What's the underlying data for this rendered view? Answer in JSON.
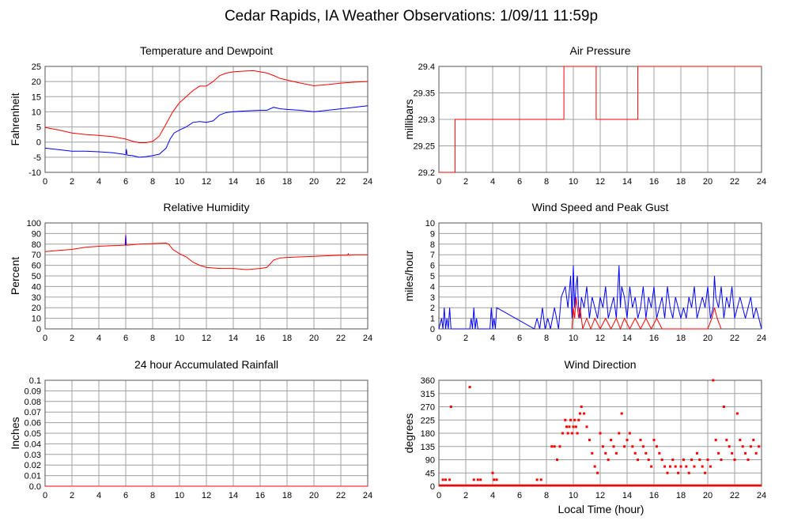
{
  "page_title": "Cedar Rapids, IA Weather Observations: 1/09/11 11:59p",
  "x_axis_label": "Local Time (hour)",
  "colors": {
    "red": "#ff0000",
    "blue": "#0000ff",
    "grid": "#a0a0a0"
  },
  "chart_data": [
    {
      "id": "temp",
      "type": "line",
      "title": "Temperature and Dewpoint",
      "ylabel": "Fahrenheit",
      "xlim": [
        0,
        24
      ],
      "ylim": [
        -10,
        25
      ],
      "xticks": [
        0,
        2,
        4,
        6,
        8,
        10,
        12,
        14,
        16,
        18,
        20,
        22,
        24
      ],
      "yticks": [
        -10,
        -5,
        0,
        5,
        10,
        15,
        20,
        25
      ],
      "series": [
        {
          "color": "#ff0000",
          "x": [
            0,
            1,
            2,
            3,
            4,
            5,
            6,
            6.5,
            7,
            7.5,
            8,
            8.5,
            9,
            9.5,
            10,
            10.5,
            11,
            11.5,
            12,
            12.5,
            13,
            13.5,
            14,
            15,
            15.5,
            16,
            16.5,
            17,
            17.5,
            18,
            19,
            20,
            21,
            22,
            23,
            24
          ],
          "y": [
            4.8,
            4,
            3,
            2.5,
            2.2,
            1.8,
            1,
            0.3,
            -0.2,
            -0.2,
            0.2,
            2,
            6,
            10,
            13,
            15,
            17,
            18.5,
            18.5,
            20,
            22,
            22.8,
            23.2,
            23.5,
            23.6,
            23.2,
            22.8,
            22,
            21,
            20.5,
            19.5,
            18.6,
            19,
            19.5,
            19.8,
            20
          ]
        },
        {
          "color": "#0000ff",
          "x": [
            0,
            1,
            2,
            3,
            4,
            5,
            5.8,
            6,
            6.05,
            6.1,
            6.5,
            7,
            7.5,
            8,
            8.5,
            9,
            9.3,
            9.6,
            10,
            10.5,
            11,
            11.5,
            12,
            12.5,
            13,
            13.5,
            14,
            14.5,
            15,
            16,
            16.5,
            17,
            17.5,
            18,
            19,
            20,
            21,
            22,
            23,
            24
          ],
          "y": [
            -2,
            -2.5,
            -3,
            -3,
            -3.2,
            -3.5,
            -4,
            -4.2,
            -2.3,
            -4.3,
            -4.5,
            -5,
            -4.8,
            -4.5,
            -4,
            -2,
            1,
            3,
            4,
            5,
            6.5,
            6.8,
            6.5,
            7,
            9,
            9.8,
            10,
            10.2,
            10.3,
            10.5,
            10.5,
            11.5,
            11,
            10.8,
            10.5,
            10,
            10.5,
            11,
            11.5,
            12
          ]
        }
      ]
    },
    {
      "id": "press",
      "type": "line",
      "title": "Air Pressure",
      "ylabel": "millibars",
      "xlim": [
        0,
        24
      ],
      "ylim": [
        29.2,
        29.4
      ],
      "xticks": [
        0,
        2,
        4,
        6,
        8,
        10,
        12,
        14,
        16,
        18,
        20,
        22,
        24
      ],
      "yticks": [
        29.2,
        29.25,
        29.3,
        29.35,
        29.4
      ],
      "ytick_labels": [
        "29.2",
        "29.25",
        "29.3",
        "29.35",
        "29.4"
      ],
      "step": true,
      "series": [
        {
          "color": "#ff0000",
          "x": [
            0,
            1.2,
            1.2,
            9.3,
            9.3,
            11.7,
            11.7,
            14.8,
            14.8,
            24
          ],
          "y": [
            29.2,
            29.2,
            29.3,
            29.3,
            29.4,
            29.4,
            29.3,
            29.3,
            29.4,
            29.4
          ]
        }
      ]
    },
    {
      "id": "rh",
      "type": "line",
      "title": "Relative Humidity",
      "ylabel": "Percent",
      "xlim": [
        0,
        24
      ],
      "ylim": [
        0,
        100
      ],
      "xticks": [
        0,
        2,
        4,
        6,
        8,
        10,
        12,
        14,
        16,
        18,
        20,
        22,
        24
      ],
      "yticks": [
        0,
        10,
        20,
        30,
        40,
        50,
        60,
        70,
        80,
        90,
        100
      ],
      "series": [
        {
          "color": "#ff0000",
          "x": [
            0,
            1,
            2,
            3,
            4,
            5,
            5.95,
            6,
            6.05,
            6.1,
            7,
            8,
            9,
            9.2,
            9.5,
            10,
            10.5,
            11,
            11.5,
            12,
            13,
            14,
            15,
            16,
            16.5,
            17,
            17.5,
            18,
            19,
            20,
            21,
            22,
            22.5,
            22.55,
            22.6,
            23,
            24
          ],
          "y": [
            73,
            74,
            75,
            77,
            78,
            78.5,
            79,
            89,
            79,
            79,
            80,
            80.5,
            81,
            80,
            75,
            71,
            68,
            63,
            60,
            58,
            57,
            57,
            56,
            57,
            58,
            65,
            67,
            67.5,
            68,
            68.5,
            69,
            69.5,
            69.5,
            71,
            69.5,
            70,
            70
          ]
        },
        {
          "color": "#0000ff",
          "x": [
            5.98,
            6,
            6.02
          ],
          "y": [
            79,
            88,
            79
          ]
        }
      ]
    },
    {
      "id": "wind",
      "type": "line",
      "title": "Wind Speed and Peak Gust",
      "ylabel": "miles/hour",
      "xlim": [
        0,
        24
      ],
      "ylim": [
        0,
        10
      ],
      "xticks": [
        0,
        2,
        4,
        6,
        8,
        10,
        12,
        14,
        16,
        18,
        20,
        22,
        24
      ],
      "yticks": [
        0,
        1,
        2,
        3,
        4,
        5,
        6,
        7,
        8,
        9,
        10
      ],
      "series": [
        {
          "color": "#0000ff",
          "x": [
            0,
            0.2,
            0.3,
            0.4,
            0.5,
            0.6,
            0.7,
            0.8,
            0.9,
            1.0,
            2.3,
            2.4,
            2.5,
            2.6,
            2.7,
            2.8,
            2.9,
            3.0,
            3.8,
            3.9,
            4.0,
            4.1,
            4.2,
            4.3,
            7.1,
            7.3,
            7.5,
            7.7,
            7.9,
            8.1,
            8.3,
            8.6,
            8.9,
            9.1,
            9.4,
            9.6,
            9.8,
            9.9,
            10.0,
            10.1,
            10.2,
            10.3,
            10.35,
            10.4,
            10.5,
            10.6,
            10.8,
            11.0,
            11.2,
            11.4,
            11.6,
            11.8,
            12.0,
            12.2,
            12.4,
            12.6,
            12.8,
            13.0,
            13.2,
            13.4,
            13.5,
            13.6,
            13.8,
            14.0,
            14.2,
            14.4,
            14.6,
            14.8,
            15.0,
            15.2,
            15.4,
            15.6,
            15.8,
            16.0,
            16.2,
            16.4,
            16.6,
            16.8,
            17.0,
            17.2,
            17.4,
            17.6,
            17.8,
            18.0,
            18.2,
            18.4,
            18.6,
            18.8,
            19.0,
            19.2,
            19.4,
            19.6,
            19.8,
            20.0,
            20.2,
            20.4,
            20.5,
            20.6,
            20.8,
            21.0,
            21.2,
            21.4,
            21.6,
            21.8,
            22.0,
            22.2,
            22.4,
            22.6,
            22.8,
            23.0,
            23.2,
            23.4,
            23.6,
            23.8,
            24.0
          ],
          "y": [
            0,
            1,
            0,
            2,
            0,
            1,
            0,
            2,
            0,
            0,
            0,
            1,
            0,
            2,
            0,
            1,
            0,
            0,
            0,
            2,
            0,
            1,
            0,
            2,
            0,
            1,
            0,
            2,
            0,
            1,
            0,
            2,
            0,
            3,
            4,
            2,
            5,
            1,
            6,
            2,
            4,
            5,
            3,
            2,
            1,
            3,
            2,
            4,
            1,
            3,
            2,
            1,
            3,
            2,
            4,
            1,
            2,
            3,
            1,
            6,
            2,
            4,
            3,
            1,
            4,
            2,
            3,
            1,
            2,
            4,
            1,
            3,
            2,
            4,
            1,
            2,
            3,
            1,
            4,
            2,
            1,
            3,
            2,
            1,
            2,
            1,
            3,
            2,
            4,
            1,
            2,
            3,
            2,
            4,
            1,
            2,
            5,
            3,
            2,
            4,
            1,
            3,
            2,
            4,
            1,
            2,
            3,
            2,
            1,
            2,
            3,
            1,
            2,
            1,
            0
          ]
        },
        {
          "color": "#ff0000",
          "x": [
            9.9,
            10.0,
            10.1,
            10.2,
            10.3,
            10.4,
            10.5,
            10.6,
            10.7,
            11.0,
            11.3,
            11.6,
            12.0,
            12.4,
            12.8,
            13.2,
            13.5,
            13.8,
            14.2,
            14.6,
            15.0,
            15.4,
            15.8,
            16.2,
            16.6,
            17.0,
            18.5,
            20.0,
            20.3,
            20.5,
            20.7,
            21.0
          ],
          "y": [
            0,
            2,
            1,
            3,
            2,
            1,
            2,
            1,
            0,
            1,
            0,
            1,
            0,
            1,
            0,
            1,
            0,
            1,
            0,
            1,
            0,
            1,
            0,
            1,
            0,
            0,
            0,
            0,
            1,
            2,
            1,
            0
          ]
        }
      ]
    },
    {
      "id": "rain",
      "type": "line",
      "title": "24 hour Accumulated Rainfall",
      "ylabel": "Inches",
      "xlim": [
        0,
        24
      ],
      "ylim": [
        0,
        0.1
      ],
      "xticks": [
        0,
        2,
        4,
        6,
        8,
        10,
        12,
        14,
        16,
        18,
        20,
        22,
        24
      ],
      "yticks": [
        0,
        0.01,
        0.02,
        0.03,
        0.04,
        0.05,
        0.06,
        0.07,
        0.08,
        0.09,
        0.1
      ],
      "ytick_labels": [
        "0.0",
        "0.01",
        "0.02",
        "0.03",
        "0.04",
        "0.05",
        "0.06",
        "0.07",
        "0.08",
        "0.09",
        "0.1"
      ],
      "series": [
        {
          "color": "#ff0000",
          "x": [
            0,
            24
          ],
          "y": [
            0,
            0
          ]
        }
      ]
    },
    {
      "id": "wdir",
      "type": "scatter",
      "title": "Wind Direction",
      "ylabel": "degrees",
      "xlabel": "Local Time (hour)",
      "xlim": [
        0,
        24
      ],
      "ylim": [
        0,
        360
      ],
      "xticks": [
        0,
        2,
        4,
        6,
        8,
        10,
        12,
        14,
        16,
        18,
        20,
        22,
        24
      ],
      "yticks": [
        0,
        45,
        90,
        135,
        180,
        225,
        270,
        315,
        360
      ],
      "series": [
        {
          "color": "#ff0000",
          "x": [
            0.3,
            0.5,
            0.8,
            0.9,
            2.3,
            2.6,
            2.9,
            3.1,
            4.0,
            4.1,
            4.3,
            7.3,
            7.6,
            8.4,
            8.6,
            8.8,
            9.0,
            9.2,
            9.4,
            9.5,
            9.6,
            9.7,
            9.8,
            9.9,
            10.0,
            10.1,
            10.2,
            10.3,
            10.4,
            10.5,
            10.6,
            10.8,
            11.0,
            11.2,
            11.4,
            11.6,
            11.8,
            12.0,
            12.2,
            12.4,
            12.6,
            12.8,
            13.0,
            13.2,
            13.4,
            13.6,
            13.8,
            14.0,
            14.2,
            14.4,
            14.6,
            14.8,
            15.0,
            15.2,
            15.4,
            15.6,
            15.8,
            16.0,
            16.2,
            16.4,
            16.6,
            16.8,
            17.0,
            17.2,
            17.4,
            17.6,
            17.8,
            18.0,
            18.2,
            18.4,
            18.6,
            18.8,
            19.0,
            19.2,
            19.4,
            19.6,
            19.8,
            20.0,
            20.2,
            20.4,
            20.6,
            20.8,
            21.0,
            21.2,
            21.4,
            21.6,
            21.8,
            22.0,
            22.2,
            22.4,
            22.6,
            22.8,
            23.0,
            23.2,
            23.4,
            23.6,
            23.8
          ],
          "y": [
            22,
            22,
            22,
            270,
            337,
            22,
            22,
            22,
            45,
            22,
            22,
            22,
            22,
            135,
            135,
            90,
            135,
            180,
            225,
            202,
            180,
            202,
            225,
            180,
            202,
            225,
            202,
            180,
            225,
            247,
            270,
            247,
            202,
            157,
            112,
            67,
            45,
            180,
            135,
            112,
            90,
            157,
            135,
            112,
            180,
            247,
            135,
            157,
            180,
            135,
            112,
            90,
            157,
            135,
            112,
            90,
            67,
            157,
            135,
            112,
            90,
            67,
            45,
            67,
            90,
            67,
            45,
            67,
            90,
            67,
            45,
            90,
            67,
            112,
            90,
            67,
            45,
            90,
            67,
            360,
            157,
            112,
            90,
            270,
            157,
            135,
            112,
            90,
            247,
            157,
            135,
            112,
            90,
            135,
            157,
            112,
            135
          ]
        }
      ]
    }
  ]
}
